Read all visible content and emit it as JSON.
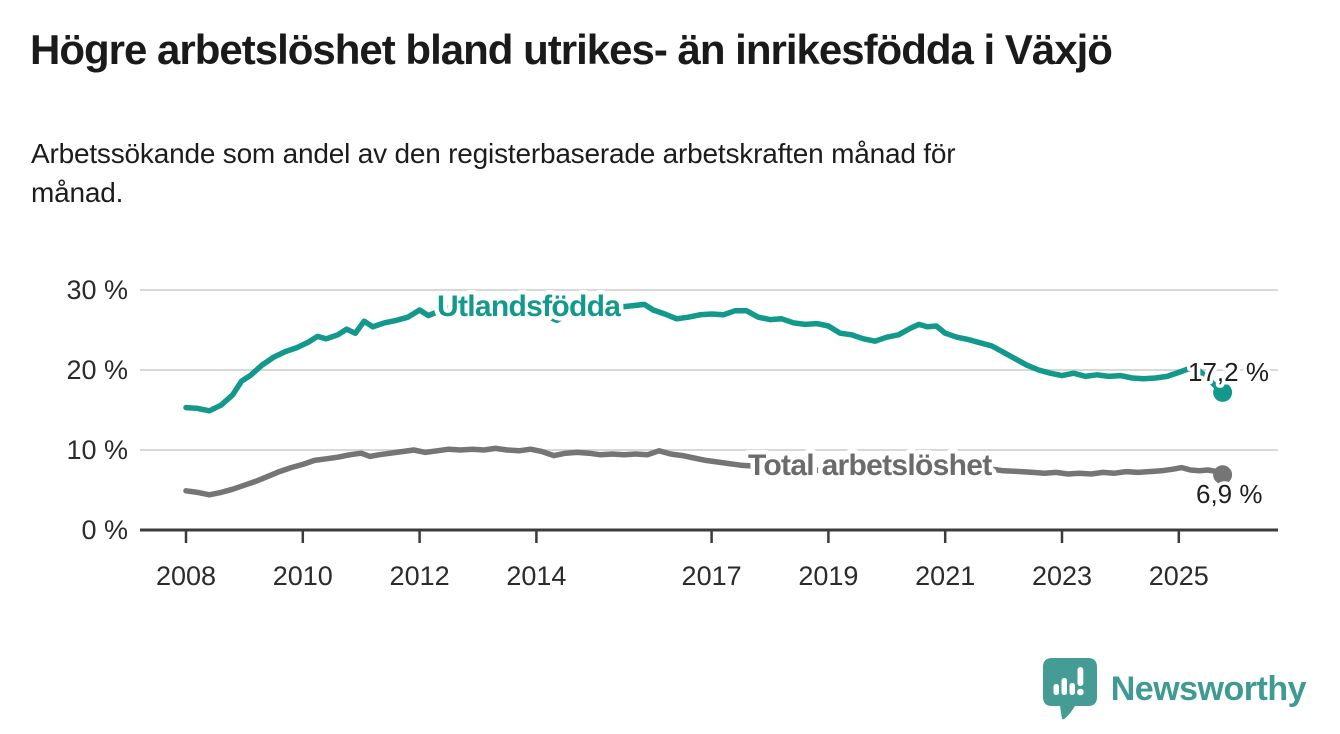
{
  "header": {
    "title": "Högre arbetslöshet bland utrikes- än inrikesfödda i Växjö",
    "subtitle": "Arbetssökande som andel av den registerbaserade arbetskraften månad för\nmånad."
  },
  "footer": {
    "brand": "Newsworthy"
  },
  "colors": {
    "accent_teal": "#12998b",
    "line_gray": "#757575",
    "label_gray": "#6b6b6b",
    "axis": "#3c3c3c",
    "grid": "#d8d8d8",
    "tick_text": "#2b2b2b",
    "value_text": "#1f1f1f",
    "logo_teal": "#459c95"
  },
  "chart_data": {
    "type": "line",
    "title": "Högre arbetslöshet bland utrikes- än inrikesfödda i Växjö",
    "subtitle": "Arbetssökande som andel av den registerbaserade arbetskraften månad för månad.",
    "xlabel": "",
    "ylabel": "",
    "xlim": [
      2007.2,
      2026.7
    ],
    "ylim": [
      0,
      33
    ],
    "grid": true,
    "legend_position": "inline-labels",
    "x_tick_values": [
      2008,
      2010,
      2012,
      2014,
      2017,
      2019,
      2021,
      2023,
      2025
    ],
    "x_tick_labels": [
      "2008",
      "2010",
      "2012",
      "2014",
      "2017",
      "2019",
      "2021",
      "2023",
      "2025"
    ],
    "y_tick_values": [
      0,
      10,
      20,
      30
    ],
    "y_tick_labels": [
      "0 %",
      "10 %",
      "20 %",
      "30 %"
    ],
    "series": [
      {
        "name": "Total arbetslöshet",
        "color": "#757575",
        "label_color": "#6b6b6b",
        "end_label": "6,9 %",
        "end_value": 6.9,
        "points": [
          [
            2008.0,
            4.9
          ],
          [
            2008.2,
            4.7
          ],
          [
            2008.4,
            4.4
          ],
          [
            2008.6,
            4.7
          ],
          [
            2008.8,
            5.1
          ],
          [
            2009.0,
            5.6
          ],
          [
            2009.2,
            6.1
          ],
          [
            2009.4,
            6.7
          ],
          [
            2009.6,
            7.3
          ],
          [
            2009.8,
            7.8
          ],
          [
            2010.0,
            8.2
          ],
          [
            2010.2,
            8.7
          ],
          [
            2010.4,
            8.9
          ],
          [
            2010.6,
            9.1
          ],
          [
            2010.8,
            9.4
          ],
          [
            2011.0,
            9.6
          ],
          [
            2011.15,
            9.2
          ],
          [
            2011.3,
            9.4
          ],
          [
            2011.5,
            9.6
          ],
          [
            2011.7,
            9.8
          ],
          [
            2011.9,
            10.0
          ],
          [
            2012.1,
            9.7
          ],
          [
            2012.3,
            9.9
          ],
          [
            2012.5,
            10.1
          ],
          [
            2012.7,
            10.0
          ],
          [
            2012.9,
            10.1
          ],
          [
            2013.1,
            10.0
          ],
          [
            2013.3,
            10.2
          ],
          [
            2013.5,
            10.0
          ],
          [
            2013.7,
            9.9
          ],
          [
            2013.9,
            10.1
          ],
          [
            2014.1,
            9.8
          ],
          [
            2014.3,
            9.3
          ],
          [
            2014.5,
            9.6
          ],
          [
            2014.7,
            9.7
          ],
          [
            2014.9,
            9.6
          ],
          [
            2015.1,
            9.4
          ],
          [
            2015.3,
            9.5
          ],
          [
            2015.5,
            9.4
          ],
          [
            2015.7,
            9.5
          ],
          [
            2015.9,
            9.4
          ],
          [
            2016.1,
            9.9
          ],
          [
            2016.3,
            9.5
          ],
          [
            2016.5,
            9.3
          ],
          [
            2016.7,
            9.0
          ],
          [
            2016.9,
            8.7
          ],
          [
            2017.1,
            8.5
          ],
          [
            2017.3,
            8.3
          ],
          [
            2017.5,
            8.1
          ],
          [
            2017.7,
            8.0
          ],
          [
            2017.9,
            7.9
          ],
          [
            2018.1,
            7.8
          ],
          [
            2018.4,
            7.7
          ],
          [
            2018.7,
            7.5
          ],
          [
            2019.0,
            7.4
          ],
          [
            2019.3,
            7.3
          ],
          [
            2019.6,
            7.3
          ],
          [
            2019.9,
            7.5
          ],
          [
            2020.2,
            8.2
          ],
          [
            2020.45,
            8.8
          ],
          [
            2020.7,
            8.6
          ],
          [
            2020.9,
            8.4
          ],
          [
            2021.1,
            8.1
          ],
          [
            2021.4,
            7.9
          ],
          [
            2021.7,
            7.7
          ],
          [
            2022.0,
            7.4
          ],
          [
            2022.3,
            7.3
          ],
          [
            2022.5,
            7.2
          ],
          [
            2022.7,
            7.1
          ],
          [
            2022.9,
            7.2
          ],
          [
            2023.1,
            7.0
          ],
          [
            2023.3,
            7.1
          ],
          [
            2023.5,
            7.0
          ],
          [
            2023.7,
            7.2
          ],
          [
            2023.9,
            7.1
          ],
          [
            2024.1,
            7.3
          ],
          [
            2024.3,
            7.2
          ],
          [
            2024.5,
            7.3
          ],
          [
            2024.7,
            7.4
          ],
          [
            2024.9,
            7.6
          ],
          [
            2025.05,
            7.8
          ],
          [
            2025.2,
            7.5
          ],
          [
            2025.35,
            7.4
          ],
          [
            2025.5,
            7.5
          ],
          [
            2025.65,
            7.3
          ],
          [
            2025.75,
            6.9
          ]
        ]
      },
      {
        "name": "Utlandsfödda",
        "color": "#12998b",
        "label_color": "#12998b",
        "end_label": "17,2 %",
        "end_value": 17.2,
        "points": [
          [
            2008.0,
            15.3
          ],
          [
            2008.2,
            15.2
          ],
          [
            2008.4,
            14.9
          ],
          [
            2008.6,
            15.6
          ],
          [
            2008.8,
            16.9
          ],
          [
            2008.95,
            18.6
          ],
          [
            2009.1,
            19.3
          ],
          [
            2009.3,
            20.6
          ],
          [
            2009.5,
            21.6
          ],
          [
            2009.7,
            22.3
          ],
          [
            2009.9,
            22.8
          ],
          [
            2010.1,
            23.5
          ],
          [
            2010.25,
            24.2
          ],
          [
            2010.4,
            23.9
          ],
          [
            2010.6,
            24.4
          ],
          [
            2010.75,
            25.1
          ],
          [
            2010.9,
            24.6
          ],
          [
            2011.05,
            26.1
          ],
          [
            2011.2,
            25.4
          ],
          [
            2011.4,
            25.9
          ],
          [
            2011.6,
            26.2
          ],
          [
            2011.8,
            26.6
          ],
          [
            2012.0,
            27.5
          ],
          [
            2012.15,
            26.8
          ],
          [
            2012.35,
            27.4
          ],
          [
            2012.55,
            27.9
          ],
          [
            2012.75,
            27.5
          ],
          [
            2012.95,
            27.8
          ],
          [
            2013.2,
            27.9
          ],
          [
            2013.45,
            28.0
          ],
          [
            2013.7,
            27.7
          ],
          [
            2013.95,
            28.0
          ],
          [
            2014.2,
            26.7
          ],
          [
            2014.35,
            26.2
          ],
          [
            2014.5,
            26.8
          ],
          [
            2014.7,
            27.3
          ],
          [
            2014.9,
            27.6
          ],
          [
            2015.1,
            27.5
          ],
          [
            2015.35,
            27.8
          ],
          [
            2015.6,
            28.0
          ],
          [
            2015.85,
            28.2
          ],
          [
            2016.0,
            27.5
          ],
          [
            2016.2,
            27.0
          ],
          [
            2016.4,
            26.4
          ],
          [
            2016.6,
            26.6
          ],
          [
            2016.8,
            26.9
          ],
          [
            2017.0,
            27.0
          ],
          [
            2017.2,
            26.9
          ],
          [
            2017.4,
            27.4
          ],
          [
            2017.6,
            27.4
          ],
          [
            2017.8,
            26.6
          ],
          [
            2018.0,
            26.3
          ],
          [
            2018.2,
            26.4
          ],
          [
            2018.4,
            25.9
          ],
          [
            2018.6,
            25.7
          ],
          [
            2018.8,
            25.8
          ],
          [
            2019.0,
            25.5
          ],
          [
            2019.2,
            24.6
          ],
          [
            2019.4,
            24.4
          ],
          [
            2019.6,
            23.9
          ],
          [
            2019.8,
            23.6
          ],
          [
            2020.0,
            24.1
          ],
          [
            2020.2,
            24.4
          ],
          [
            2020.4,
            25.2
          ],
          [
            2020.55,
            25.7
          ],
          [
            2020.7,
            25.4
          ],
          [
            2020.85,
            25.5
          ],
          [
            2021.0,
            24.6
          ],
          [
            2021.2,
            24.1
          ],
          [
            2021.4,
            23.8
          ],
          [
            2021.6,
            23.4
          ],
          [
            2021.8,
            23.0
          ],
          [
            2022.0,
            22.2
          ],
          [
            2022.2,
            21.4
          ],
          [
            2022.4,
            20.6
          ],
          [
            2022.6,
            20.0
          ],
          [
            2022.8,
            19.6
          ],
          [
            2023.0,
            19.3
          ],
          [
            2023.2,
            19.6
          ],
          [
            2023.4,
            19.2
          ],
          [
            2023.6,
            19.4
          ],
          [
            2023.8,
            19.2
          ],
          [
            2024.0,
            19.3
          ],
          [
            2024.2,
            19.0
          ],
          [
            2024.4,
            18.9
          ],
          [
            2024.6,
            19.0
          ],
          [
            2024.8,
            19.2
          ],
          [
            2025.0,
            19.7
          ],
          [
            2025.15,
            20.1
          ],
          [
            2025.3,
            20.2
          ],
          [
            2025.45,
            19.3
          ],
          [
            2025.6,
            18.2
          ],
          [
            2025.75,
            17.2
          ]
        ]
      }
    ]
  }
}
